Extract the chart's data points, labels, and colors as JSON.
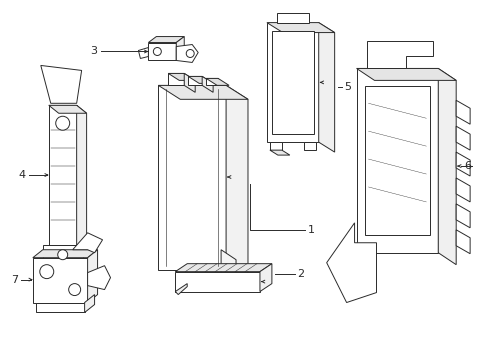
{
  "background_color": "#ffffff",
  "line_color": "#2a2a2a",
  "line_width": 0.7,
  "label_fontsize": 8,
  "fig_width": 4.9,
  "fig_height": 3.6,
  "dpi": 100
}
